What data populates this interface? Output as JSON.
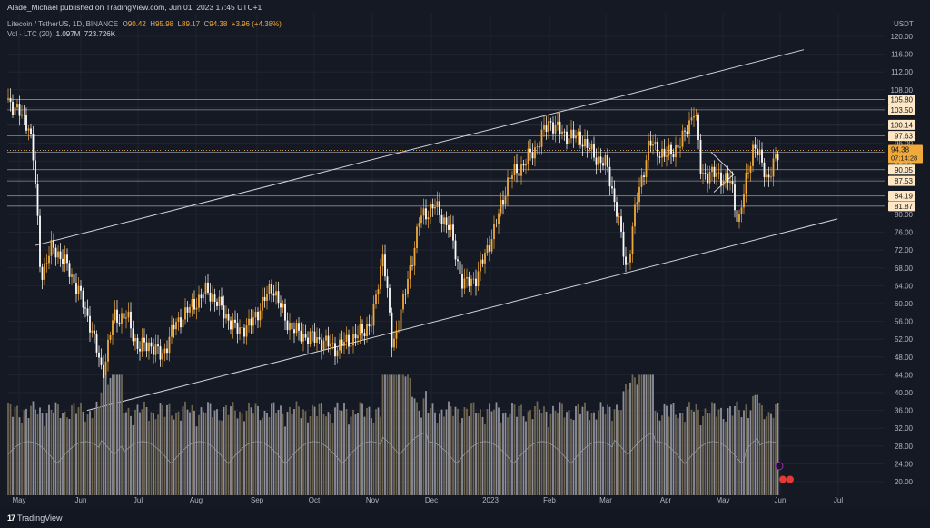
{
  "header": {
    "publisher_line": "Alade_Michael published on TradingView.com, Jun 01, 2023 17:45 UTC+1"
  },
  "legend": {
    "symbol": "Litecoin / TetherUS, 1D, BINANCE",
    "o_label": "O",
    "o_value": "90.42",
    "h_label": "H",
    "h_value": "95.98",
    "l_label": "L",
    "l_value": "89.17",
    "c_label": "C",
    "c_value": "94.38",
    "change": "+3.96 (+4.38%)",
    "vol_label": "Vol · LTC (20)",
    "vol_value1": "1.097M",
    "vol_value2": "723.726K"
  },
  "axis": {
    "unit": "USDT"
  },
  "footer": {
    "brand": "TradingView",
    "brand_mark": "17"
  },
  "colors": {
    "background": "#151924",
    "up_candle": "#f0a93a",
    "down_candle": "#ffffff",
    "line": "#d1d4dc",
    "current_price_tag": "#f0a93a",
    "label_bg": "#fde7c4"
  },
  "chart_data": {
    "type": "candlestick",
    "pair": "Litecoin / TetherUS",
    "interval": "1D",
    "exchange": "BINANCE",
    "y_axis": {
      "ticks": [
        "120.00",
        "116.00",
        "112.00",
        "108.00",
        "104.00",
        "100.00",
        "96.00",
        "92.00",
        "88.00",
        "84.00",
        "80.00",
        "76.00",
        "72.00",
        "68.00",
        "64.00",
        "60.00",
        "56.00",
        "52.00",
        "48.00",
        "44.00",
        "40.00",
        "36.00",
        "32.00",
        "28.00",
        "24.00",
        "20.00"
      ],
      "range": [
        20,
        122
      ]
    },
    "x_axis": {
      "ticks": [
        "May",
        "Jun",
        "Jul",
        "Aug",
        "Sep",
        "Oct",
        "Nov",
        "Dec",
        "2023",
        "Feb",
        "Mar",
        "Apr",
        "May",
        "Jun",
        "Jul"
      ]
    },
    "horizontal_levels": [
      "105.80",
      "103.50",
      "100.14",
      "97.63",
      "94.01",
      "90.05",
      "87.53",
      "84.19",
      "81.87"
    ],
    "current_price": "94.38",
    "countdown": "07:14:28",
    "channel_lines": [
      {
        "from": [
          "May",
          73
        ],
        "to": [
          "Jul",
          117
        ]
      },
      {
        "from": [
          "Jun",
          36
        ],
        "to": [
          "Jul",
          79
        ]
      }
    ],
    "approx_closes": [
      {
        "x": "May",
        "y": 106
      },
      {
        "x": "May",
        "y": 100
      },
      {
        "x": "May",
        "y": 66
      },
      {
        "x": "May",
        "y": 73
      },
      {
        "x": "Jun",
        "y": 61
      },
      {
        "x": "Jun",
        "y": 42
      },
      {
        "x": "Jun",
        "y": 57
      },
      {
        "x": "Jul",
        "y": 52
      },
      {
        "x": "Jul",
        "y": 49
      },
      {
        "x": "Aug",
        "y": 62
      },
      {
        "x": "Aug",
        "y": 58
      },
      {
        "x": "Sep",
        "y": 53
      },
      {
        "x": "Sep",
        "y": 62
      },
      {
        "x": "Oct",
        "y": 53
      },
      {
        "x": "Oct",
        "y": 52
      },
      {
        "x": "Nov",
        "y": 56
      },
      {
        "x": "Nov",
        "y": 63
      },
      {
        "x": "Nov",
        "y": 77
      },
      {
        "x": "Dec",
        "y": 75
      },
      {
        "x": "Dec",
        "y": 65
      },
      {
        "x": "2023",
        "y": 79
      },
      {
        "x": "2023",
        "y": 91
      },
      {
        "x": "Feb",
        "y": 101
      },
      {
        "x": "Feb",
        "y": 96
      },
      {
        "x": "Mar",
        "y": 87
      },
      {
        "x": "Mar",
        "y": 68
      },
      {
        "x": "Mar",
        "y": 86
      },
      {
        "x": "Apr",
        "y": 96
      },
      {
        "x": "Apr",
        "y": 104
      },
      {
        "x": "May",
        "y": 90
      },
      {
        "x": "May",
        "y": 78
      },
      {
        "x": "May",
        "y": 95
      },
      {
        "x": "Jun",
        "y": 94.38
      }
    ],
    "volume": {
      "series_name": "Vol · LTC (20)",
      "values": [
        "1.097M",
        "723.726K"
      ]
    }
  }
}
